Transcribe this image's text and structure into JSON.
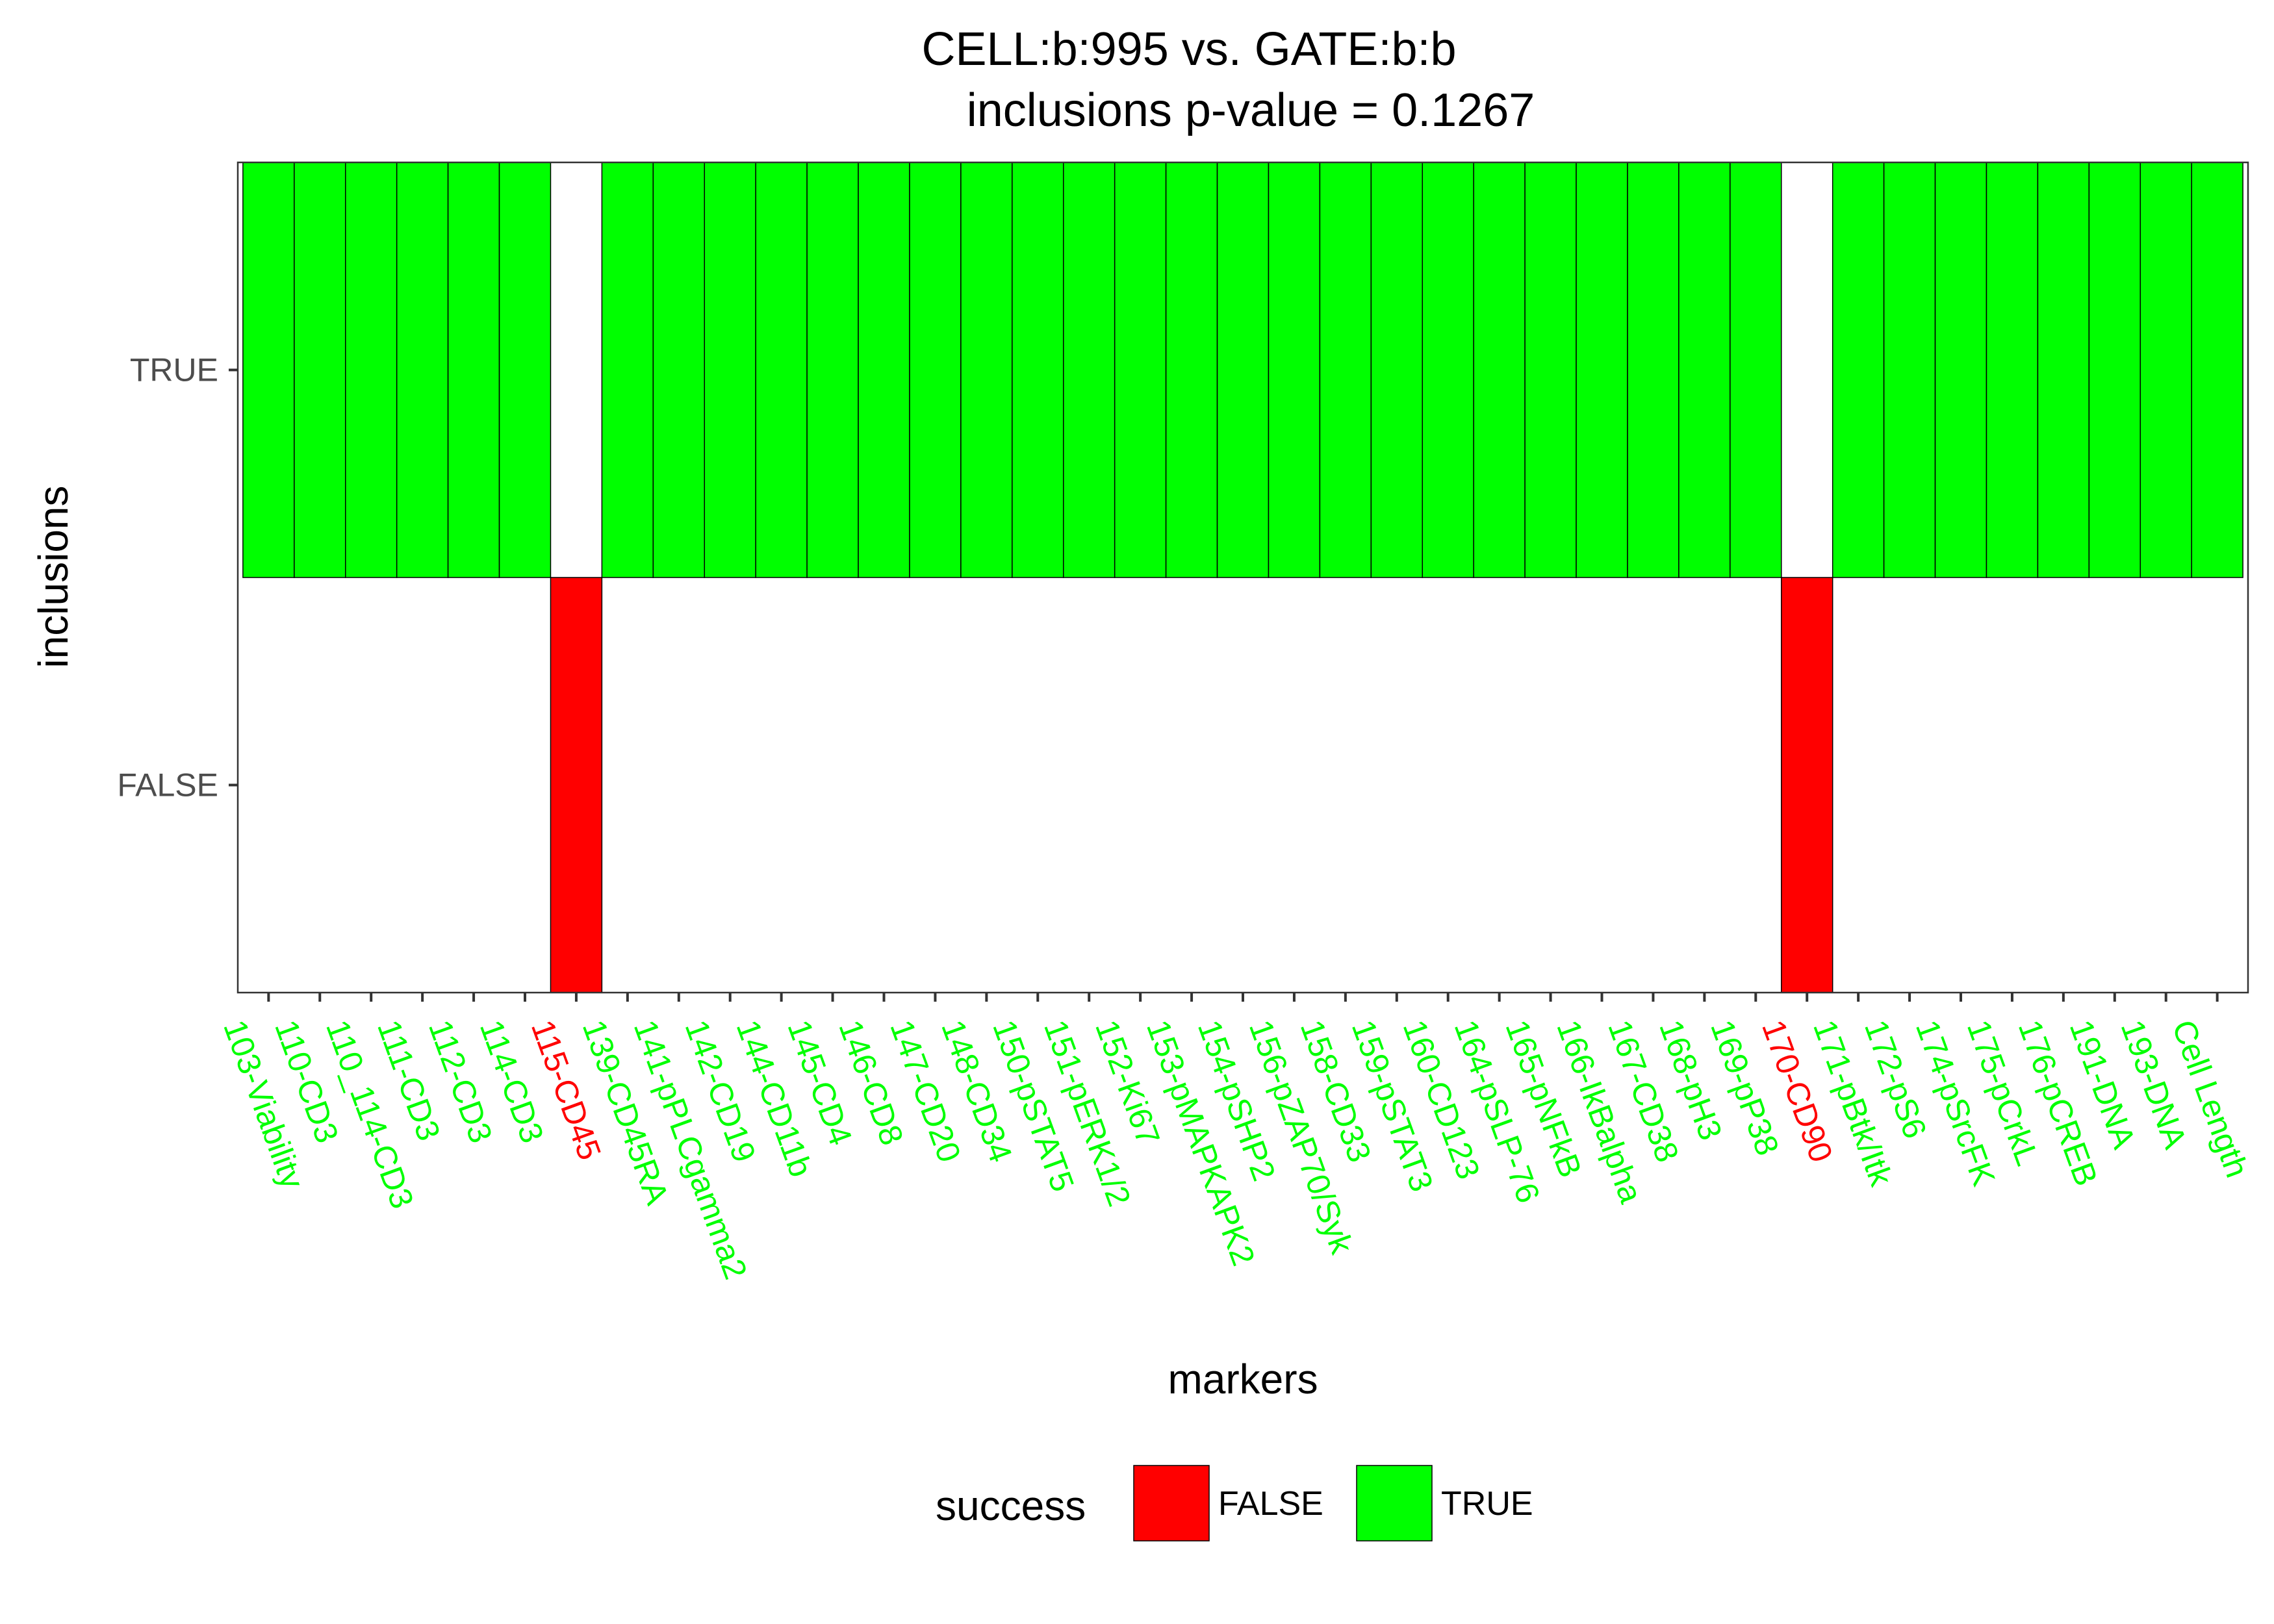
{
  "chart_data": {
    "type": "heatmap",
    "title": "CELL:b:995  vs.  GATE:b:b",
    "subtitle": "inclusions p-value =  0.1267",
    "xlabel": "markers",
    "ylabel": "inclusions",
    "y_categories": [
      "FALSE",
      "TRUE"
    ],
    "categories": [
      "103-Viability",
      "110-CD3",
      "110_114-CD3",
      "111-CD3",
      "112-CD3",
      "114-CD3",
      "115-CD45",
      "139-CD45RA",
      "141-pPLCgamma2",
      "142-CD19",
      "144-CD11b",
      "145-CD4",
      "146-CD8",
      "147-CD20",
      "148-CD34",
      "150-pSTAT5",
      "151-pERK1/2",
      "152-Ki67",
      "153-pMAPKAPK2",
      "154-pSHP2",
      "156-pZAP70/Syk",
      "158-CD33",
      "159-pSTAT3",
      "160-CD123",
      "164-pSLP-76",
      "165-pNFkB",
      "166-IkBalpha",
      "167-CD38",
      "168-pH3",
      "169-pP38",
      "170-CD90",
      "171-pBtk/Itk",
      "172-pS6",
      "174-pSrcFK",
      "175-pCrkL",
      "176-pCREB",
      "191-DNA",
      "193-DNA",
      "Cell Length"
    ],
    "values": [
      "TRUE",
      "TRUE",
      "TRUE",
      "TRUE",
      "TRUE",
      "TRUE",
      "FALSE",
      "TRUE",
      "TRUE",
      "TRUE",
      "TRUE",
      "TRUE",
      "TRUE",
      "TRUE",
      "TRUE",
      "TRUE",
      "TRUE",
      "TRUE",
      "TRUE",
      "TRUE",
      "TRUE",
      "TRUE",
      "TRUE",
      "TRUE",
      "TRUE",
      "TRUE",
      "TRUE",
      "TRUE",
      "TRUE",
      "TRUE",
      "FALSE",
      "TRUE",
      "TRUE",
      "TRUE",
      "TRUE",
      "TRUE",
      "TRUE",
      "TRUE",
      "TRUE"
    ],
    "fill_variable": "success",
    "legend": {
      "title": "success",
      "placement": "bottom",
      "entries": [
        {
          "label": "FALSE",
          "color": "#ff0000"
        },
        {
          "label": "TRUE",
          "color": "#00ff00"
        }
      ]
    },
    "colors": {
      "FALSE": "#ff0000",
      "TRUE": "#00ff00"
    },
    "grid": false
  }
}
